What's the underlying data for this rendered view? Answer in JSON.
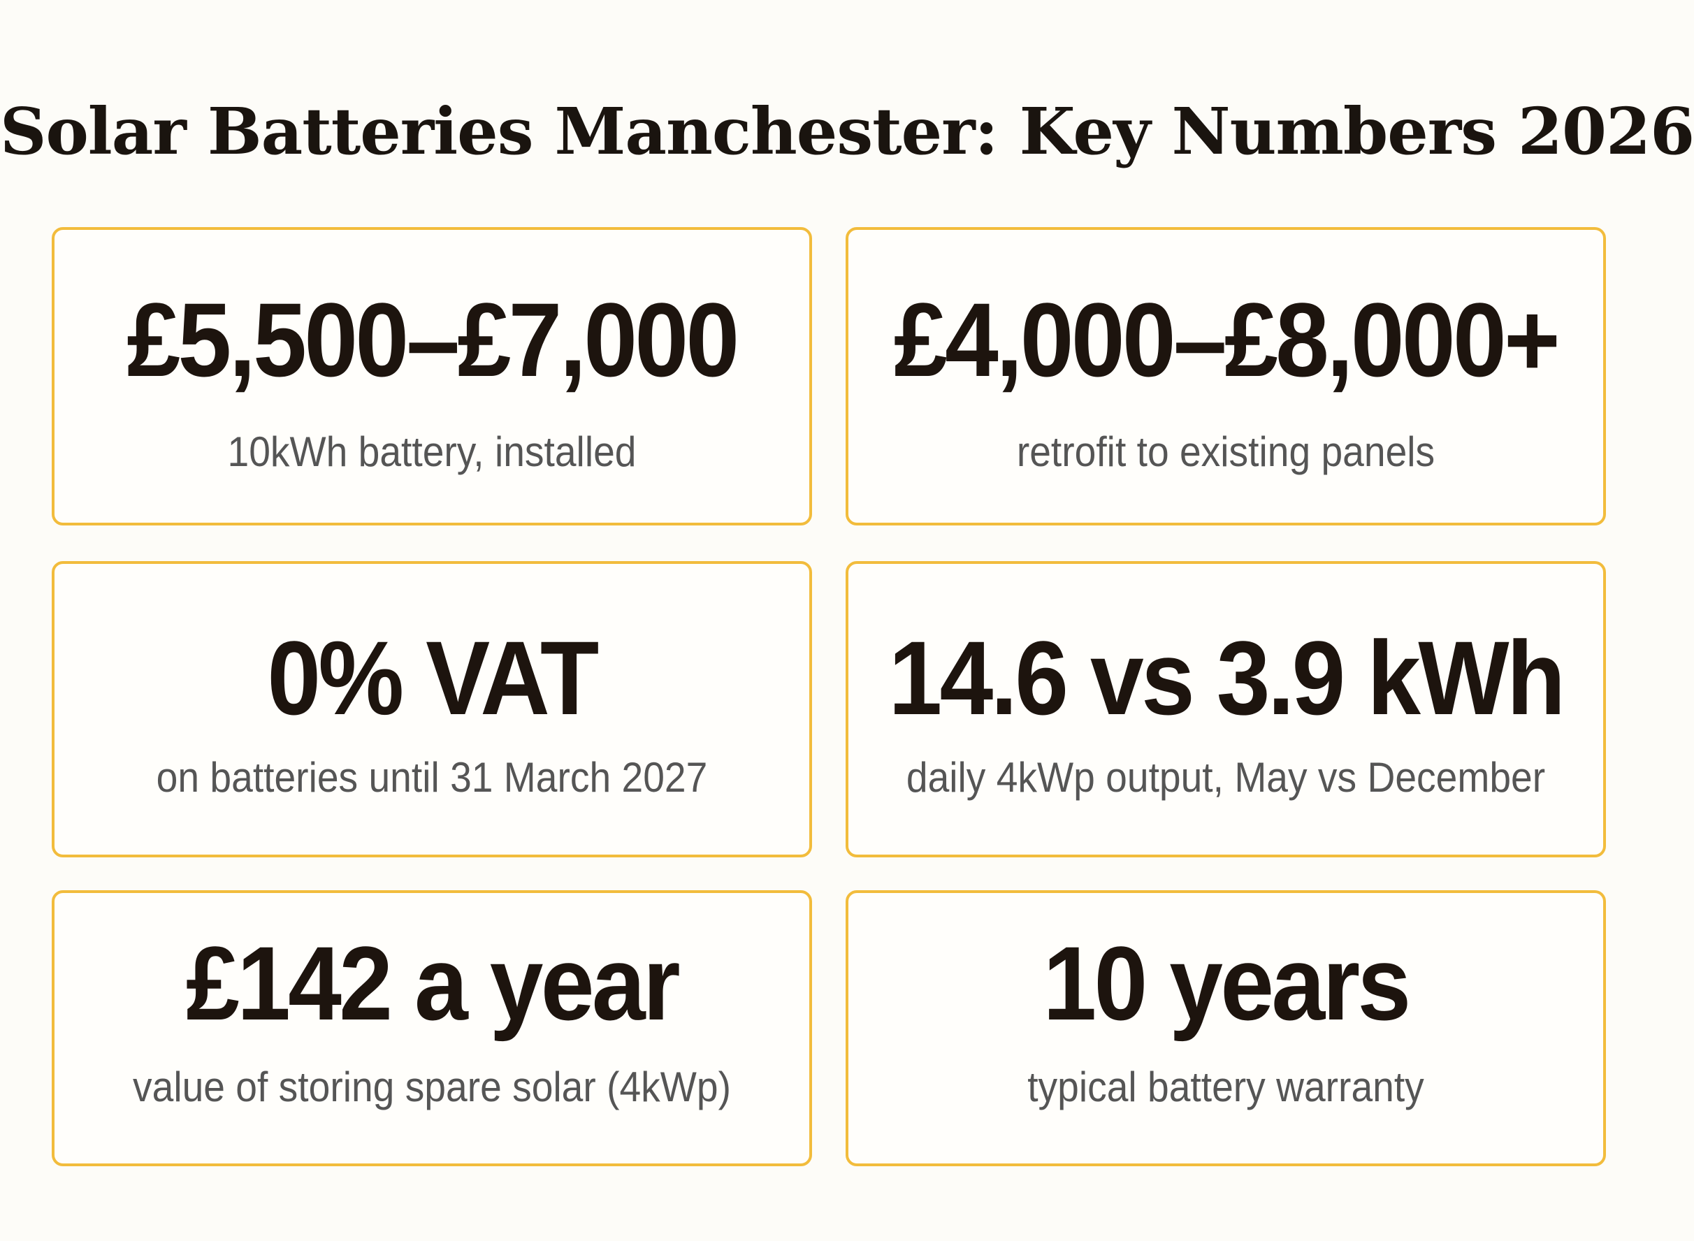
{
  "title": "Solar Batteries Manchester: Key Numbers 2026",
  "colors": {
    "background": "#fdfcf8",
    "card_border": "#f2bc3c",
    "value_text": "#1d140e",
    "label_text": "#555555"
  },
  "cards": [
    {
      "value": "£5,500–£7,000",
      "label": "10kWh battery, installed"
    },
    {
      "value": "£4,000–£8,000+",
      "label": "retrofit to existing panels"
    },
    {
      "value": "0% VAT",
      "label": "on batteries until 31 March 2027"
    },
    {
      "value": "14.6 vs 3.9 kWh",
      "label": "daily 4kWp output, May vs December"
    },
    {
      "value": "£142 a year",
      "label": "value of storing spare solar (4kWp)"
    },
    {
      "value": "10 years",
      "label": "typical battery warranty"
    }
  ]
}
